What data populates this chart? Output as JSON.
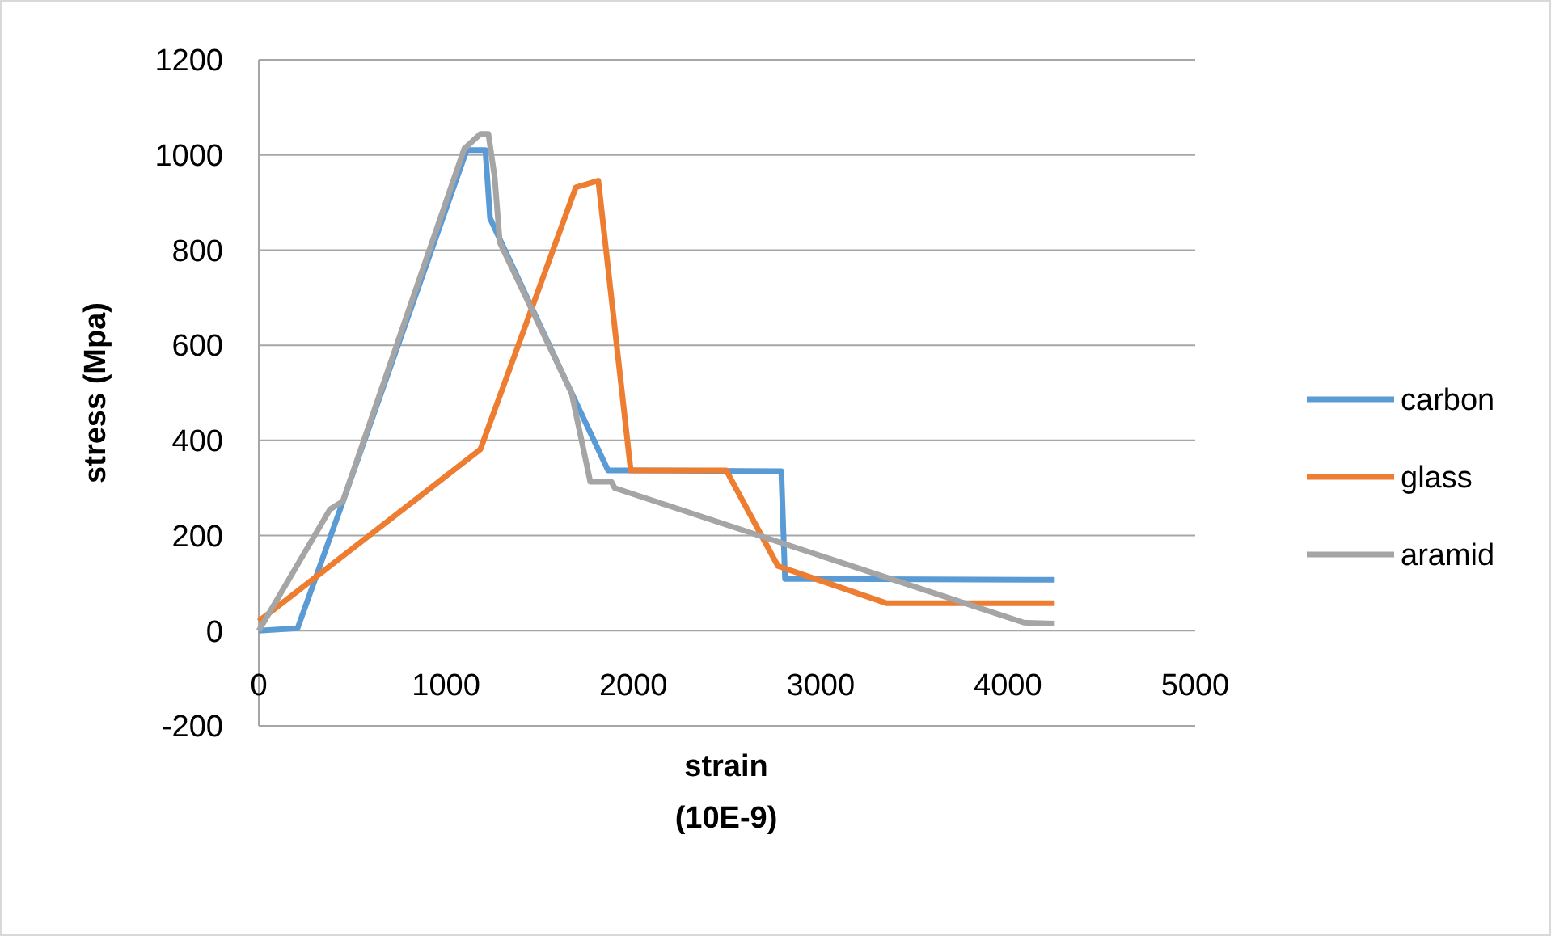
{
  "chart_data": {
    "type": "line",
    "xlabel": "strain\n(10E-9)",
    "ylabel": "stress (Mpa)",
    "xlim": [
      0,
      5000
    ],
    "xticks": [
      0,
      1000,
      2000,
      3000,
      4000,
      5000
    ],
    "ylim": [
      -200,
      1200
    ],
    "yticks": [
      -200,
      0,
      200,
      400,
      600,
      800,
      1000,
      1200
    ],
    "grid": "y",
    "legend": "right",
    "series": [
      {
        "name": "carbon",
        "color": "#5b9bd5",
        "x": [
          0,
          207,
          450,
          1110,
          1210,
          1235,
          1295,
          1670,
          1865,
          2000,
          2790,
          2810,
          4250
        ],
        "values": [
          0,
          5,
          272,
          1010,
          1010,
          867,
          816,
          500,
          337,
          337,
          335,
          109,
          107
        ]
      },
      {
        "name": "glass",
        "color": "#ed7d31",
        "x": [
          0,
          1183,
          1693,
          1813,
          1986,
          2496,
          2772,
          3350,
          4250
        ],
        "values": [
          20,
          381,
          932,
          946,
          337,
          337,
          136,
          58,
          58
        ]
      },
      {
        "name": "aramid",
        "color": "#a5a5a5",
        "x": [
          0,
          380,
          449,
          1097,
          1183,
          1226,
          1260,
          1287,
          1670,
          1770,
          1883,
          1900,
          4085,
          4250
        ],
        "values": [
          0,
          255,
          272,
          1013,
          1044,
          1044,
          952,
          816,
          500,
          313,
          313,
          300,
          17,
          15
        ]
      }
    ]
  }
}
